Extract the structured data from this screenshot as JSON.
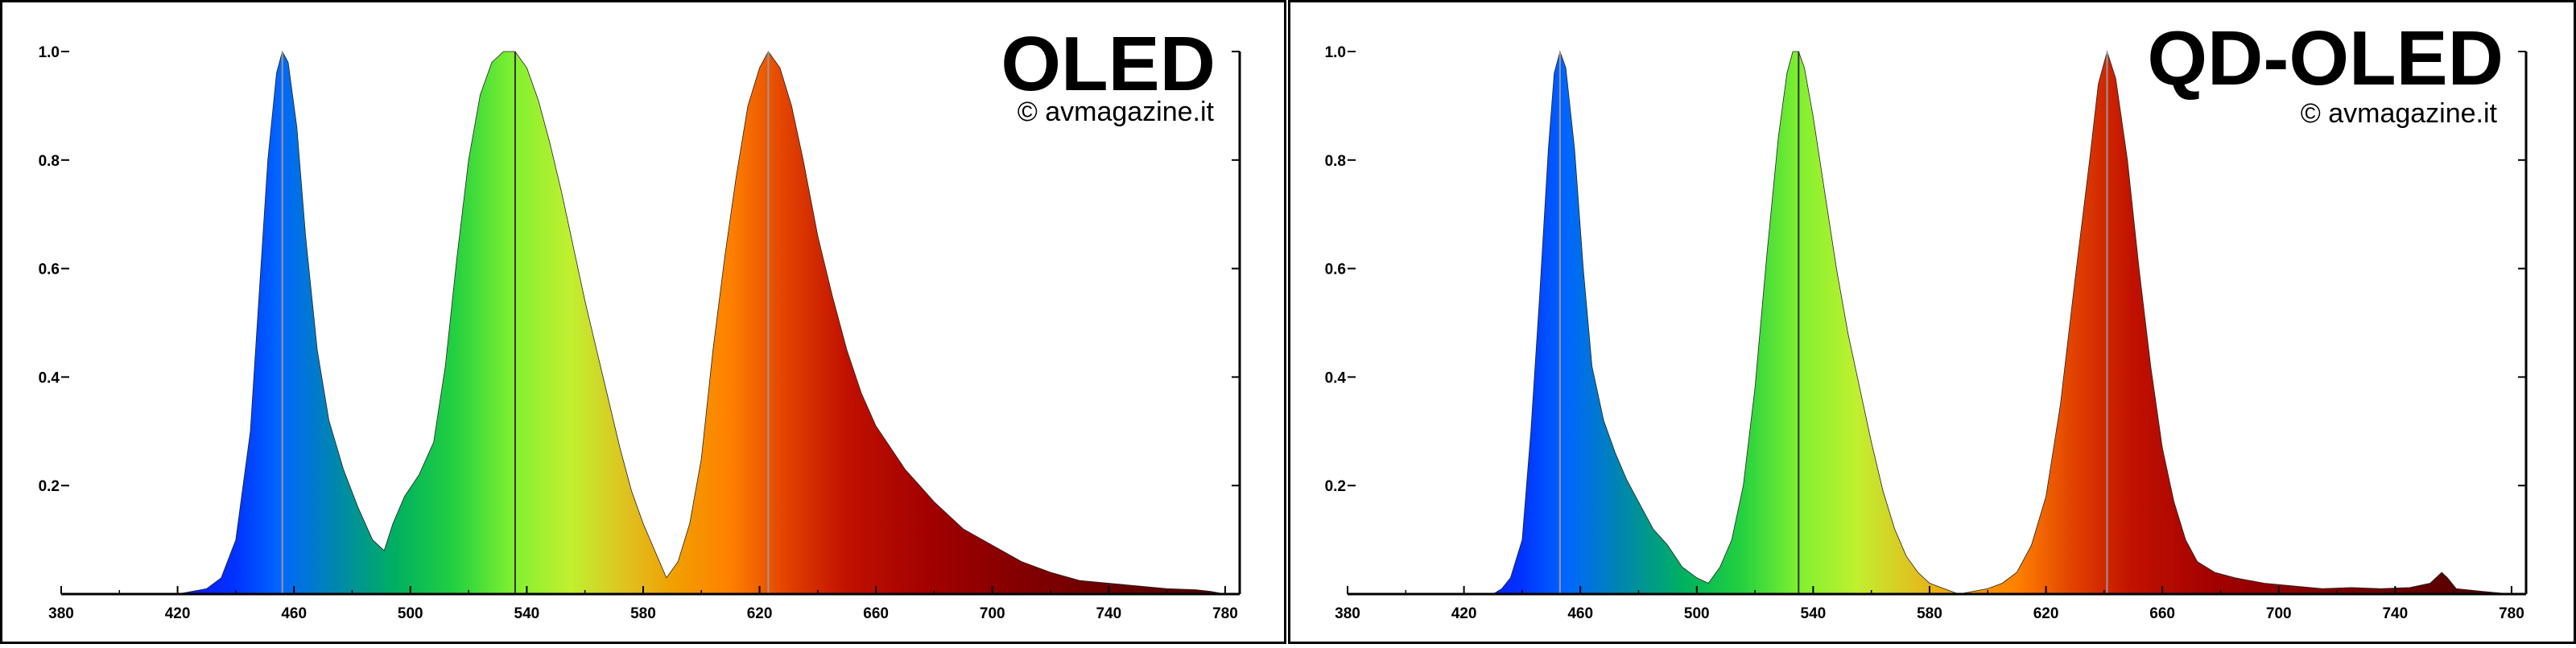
{
  "chart_data": [
    {
      "type": "area",
      "title": "OLED",
      "credit": "© avmagazine.it",
      "xlim": [
        380,
        785
      ],
      "ylim": [
        0,
        1.0
      ],
      "x_ticks": [
        380,
        420,
        460,
        500,
        540,
        580,
        620,
        660,
        700,
        740,
        780
      ],
      "y_ticks": [
        0.2,
        0.4,
        0.6,
        0.8,
        1.0
      ],
      "grid": false,
      "peak_lines": [
        456,
        536,
        623
      ],
      "spectrum": [
        [
          380,
          0
        ],
        [
          420,
          0
        ],
        [
          425,
          0.005
        ],
        [
          430,
          0.01
        ],
        [
          435,
          0.03
        ],
        [
          440,
          0.1
        ],
        [
          445,
          0.3
        ],
        [
          448,
          0.55
        ],
        [
          451,
          0.8
        ],
        [
          454,
          0.96
        ],
        [
          456,
          1.0
        ],
        [
          458,
          0.98
        ],
        [
          461,
          0.86
        ],
        [
          464,
          0.66
        ],
        [
          468,
          0.45
        ],
        [
          472,
          0.32
        ],
        [
          477,
          0.23
        ],
        [
          482,
          0.16
        ],
        [
          487,
          0.1
        ],
        [
          491,
          0.08
        ],
        [
          494,
          0.13
        ],
        [
          498,
          0.18
        ],
        [
          503,
          0.22
        ],
        [
          508,
          0.28
        ],
        [
          512,
          0.42
        ],
        [
          516,
          0.62
        ],
        [
          520,
          0.8
        ],
        [
          524,
          0.92
        ],
        [
          528,
          0.98
        ],
        [
          532,
          1.0
        ],
        [
          536,
          1.0
        ],
        [
          540,
          0.97
        ],
        [
          544,
          0.91
        ],
        [
          548,
          0.83
        ],
        [
          552,
          0.74
        ],
        [
          556,
          0.64
        ],
        [
          560,
          0.54
        ],
        [
          564,
          0.45
        ],
        [
          568,
          0.36
        ],
        [
          572,
          0.27
        ],
        [
          576,
          0.19
        ],
        [
          580,
          0.13
        ],
        [
          584,
          0.08
        ],
        [
          588,
          0.03
        ],
        [
          592,
          0.06
        ],
        [
          596,
          0.13
        ],
        [
          600,
          0.25
        ],
        [
          604,
          0.45
        ],
        [
          608,
          0.62
        ],
        [
          612,
          0.77
        ],
        [
          616,
          0.9
        ],
        [
          620,
          0.97
        ],
        [
          623,
          1.0
        ],
        [
          627,
          0.97
        ],
        [
          631,
          0.9
        ],
        [
          635,
          0.8
        ],
        [
          640,
          0.66
        ],
        [
          645,
          0.55
        ],
        [
          650,
          0.45
        ],
        [
          655,
          0.37
        ],
        [
          660,
          0.31
        ],
        [
          665,
          0.27
        ],
        [
          670,
          0.23
        ],
        [
          675,
          0.2
        ],
        [
          680,
          0.17
        ],
        [
          690,
          0.12
        ],
        [
          700,
          0.09
        ],
        [
          710,
          0.06
        ],
        [
          720,
          0.04
        ],
        [
          730,
          0.025
        ],
        [
          740,
          0.02
        ],
        [
          750,
          0.015
        ],
        [
          760,
          0.01
        ],
        [
          770,
          0.008
        ],
        [
          775,
          0.005
        ],
        [
          780,
          0
        ]
      ]
    },
    {
      "type": "area",
      "title": "QD-OLED",
      "credit": "© avmagazine.it",
      "xlim": [
        380,
        785
      ],
      "ylim": [
        0,
        1.0
      ],
      "x_ticks": [
        380,
        420,
        460,
        500,
        540,
        580,
        620,
        660,
        700,
        740,
        780
      ],
      "y_ticks": [
        0.2,
        0.4,
        0.6,
        0.8,
        1.0
      ],
      "grid": false,
      "peak_lines": [
        453,
        535,
        641
      ],
      "spectrum": [
        [
          380,
          0
        ],
        [
          430,
          0
        ],
        [
          433,
          0.01
        ],
        [
          436,
          0.03
        ],
        [
          440,
          0.1
        ],
        [
          443,
          0.3
        ],
        [
          446,
          0.55
        ],
        [
          449,
          0.82
        ],
        [
          451,
          0.96
        ],
        [
          453,
          1.0
        ],
        [
          455,
          0.97
        ],
        [
          458,
          0.82
        ],
        [
          461,
          0.6
        ],
        [
          464,
          0.42
        ],
        [
          468,
          0.32
        ],
        [
          472,
          0.26
        ],
        [
          476,
          0.21
        ],
        [
          480,
          0.17
        ],
        [
          485,
          0.12
        ],
        [
          490,
          0.09
        ],
        [
          495,
          0.05
        ],
        [
          500,
          0.03
        ],
        [
          504,
          0.02
        ],
        [
          508,
          0.05
        ],
        [
          512,
          0.1
        ],
        [
          516,
          0.2
        ],
        [
          520,
          0.38
        ],
        [
          524,
          0.62
        ],
        [
          528,
          0.84
        ],
        [
          531,
          0.96
        ],
        [
          533,
          1.0
        ],
        [
          535,
          1.0
        ],
        [
          537,
          0.97
        ],
        [
          540,
          0.88
        ],
        [
          544,
          0.74
        ],
        [
          548,
          0.6
        ],
        [
          552,
          0.48
        ],
        [
          556,
          0.38
        ],
        [
          560,
          0.28
        ],
        [
          564,
          0.19
        ],
        [
          568,
          0.12
        ],
        [
          572,
          0.07
        ],
        [
          576,
          0.04
        ],
        [
          580,
          0.02
        ],
        [
          585,
          0.01
        ],
        [
          590,
          0
        ],
        [
          600,
          0.01
        ],
        [
          605,
          0.02
        ],
        [
          610,
          0.04
        ],
        [
          615,
          0.09
        ],
        [
          620,
          0.18
        ],
        [
          625,
          0.35
        ],
        [
          630,
          0.58
        ],
        [
          635,
          0.8
        ],
        [
          638,
          0.94
        ],
        [
          641,
          1.0
        ],
        [
          644,
          0.95
        ],
        [
          648,
          0.8
        ],
        [
          652,
          0.6
        ],
        [
          656,
          0.42
        ],
        [
          660,
          0.27
        ],
        [
          664,
          0.17
        ],
        [
          668,
          0.1
        ],
        [
          672,
          0.06
        ],
        [
          678,
          0.04
        ],
        [
          685,
          0.03
        ],
        [
          695,
          0.02
        ],
        [
          705,
          0.015
        ],
        [
          715,
          0.01
        ],
        [
          725,
          0.012
        ],
        [
          735,
          0.01
        ],
        [
          745,
          0.012
        ],
        [
          752,
          0.02
        ],
        [
          756,
          0.04
        ],
        [
          758,
          0.03
        ],
        [
          761,
          0.01
        ],
        [
          770,
          0.005
        ],
        [
          780,
          0
        ]
      ]
    }
  ]
}
